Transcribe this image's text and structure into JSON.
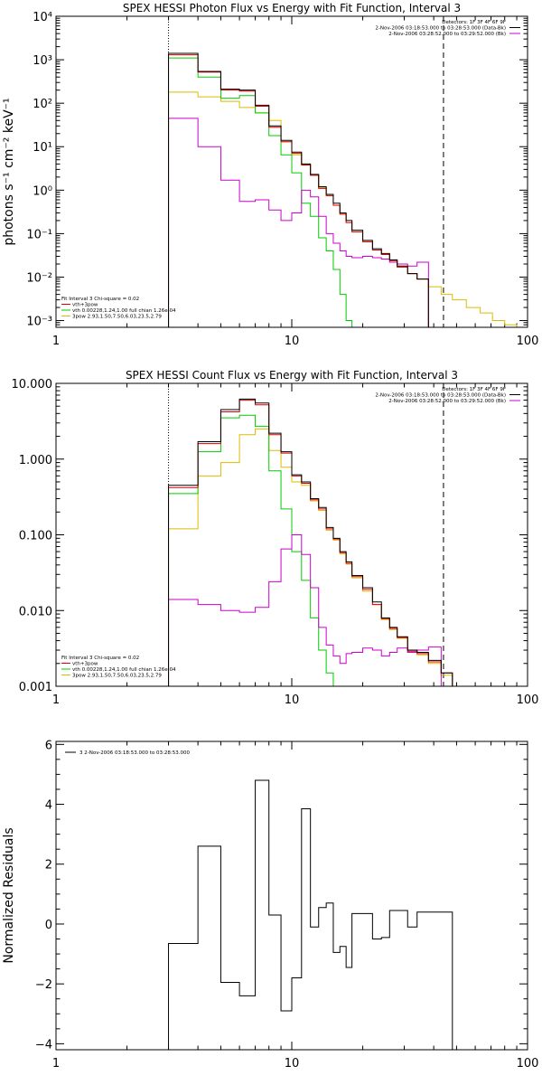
{
  "chart_data": [
    {
      "type": "line",
      "step": true,
      "title": "SPEX HESSI Photon Flux vs Energy with Fit Function, Interval 3",
      "ylabel": "photons s⁻¹ cm⁻² keV⁻¹",
      "xlabel": "",
      "xscale": "log",
      "yscale": "log",
      "xlim": [
        1,
        100
      ],
      "ylim": [
        0.0007,
        10000
      ],
      "x_ticks": [
        {
          "v": 1,
          "label": "1"
        },
        {
          "v": 10,
          "label": "10"
        },
        {
          "v": 100,
          "label": "100"
        }
      ],
      "y_ticks": [
        {
          "v": 0.001,
          "label": "10⁻³"
        },
        {
          "v": 0.01,
          "label": "10⁻²"
        },
        {
          "v": 0.1,
          "label": "10⁻¹"
        },
        {
          "v": 1,
          "label": "10⁰"
        },
        {
          "v": 10,
          "label": "10¹"
        },
        {
          "v": 100,
          "label": "10²"
        },
        {
          "v": 1000,
          "label": "10³"
        },
        {
          "v": 10000,
          "label": "10⁴"
        }
      ],
      "vlines": [
        {
          "x": 3,
          "style": "dotted",
          "color": "#000000"
        },
        {
          "x": 44,
          "style": "dashed",
          "color": "#000000"
        }
      ],
      "edges": [
        3,
        4,
        5,
        6,
        7,
        8,
        9,
        10,
        11,
        12,
        13,
        14,
        15,
        16,
        17,
        18,
        20,
        22,
        24,
        26,
        28,
        31,
        34,
        38,
        43,
        48,
        55,
        63,
        71,
        80,
        90,
        100
      ],
      "legend_top": [
        {
          "text": "Detectors: 1F 3F 4F 6F 9F",
          "color": "#000000"
        },
        {
          "text": "2-Nov-2006 03:18:53.000 to 03:28:53.000 (Data-Bk)",
          "color": "#000000"
        },
        {
          "text": "2-Nov-2006 03:28:52.000 to 03:29:52.000 (Bk)",
          "color": "#cc00cc"
        }
      ],
      "legend_bottom": [
        {
          "text": "Fit Interval 3   Chi-square = 0.02",
          "color": "#000000"
        },
        {
          "text": "vth+3pow",
          "color": "#dd0000"
        },
        {
          "text": "vth 0.00228,1.24,1.00  full chian 1.26e-04",
          "color": "#00cc00"
        },
        {
          "text": "3pow 2.93,1.50,7.50,6.03,23.5,2.79",
          "color": "#ddbb00"
        }
      ],
      "series": [
        {
          "color": "#000000",
          "values": [
            1400,
            540,
            210,
            200,
            90,
            30,
            14,
            7.5,
            4,
            2.3,
            1.2,
            0.8,
            0.5,
            0.3,
            0.2,
            0.12,
            0.07,
            0.045,
            0.035,
            0.025,
            0.018,
            0.012,
            0.009,
            null,
            null,
            null,
            null,
            null,
            null,
            null,
            null
          ]
        },
        {
          "color": "#dd0000",
          "values": [
            1300,
            520,
            200,
            190,
            85,
            28,
            13,
            7,
            3.8,
            2.2,
            1.1,
            0.75,
            0.45,
            0.28,
            0.18,
            0.11,
            0.065,
            0.042,
            0.033,
            0.024,
            0.017,
            0.012,
            0.009,
            null,
            null,
            null,
            null,
            null,
            null,
            null,
            null
          ]
        },
        {
          "color": "#00cc00",
          "values": [
            1100,
            400,
            130,
            150,
            60,
            18,
            6.5,
            2.5,
            0.5,
            0.25,
            0.08,
            0.04,
            0.015,
            0.004,
            0.001,
            null,
            null,
            null,
            null,
            null,
            null,
            null,
            null,
            null,
            null,
            null,
            null,
            null,
            null,
            null,
            null
          ]
        },
        {
          "color": "#ddbb00",
          "values": [
            180,
            140,
            110,
            80,
            60,
            40,
            13,
            6.5,
            4,
            2.2,
            1.15,
            0.75,
            0.45,
            0.28,
            0.18,
            0.11,
            0.065,
            0.042,
            0.033,
            0.024,
            0.017,
            0.012,
            0.009,
            0.006,
            0.004,
            0.003,
            0.002,
            0.0015,
            0.001,
            0.0008,
            0.0007
          ]
        },
        {
          "color": "#cc00cc",
          "values": [
            45,
            10,
            1.7,
            0.55,
            0.6,
            0.35,
            0.2,
            0.3,
            1,
            0.7,
            0.25,
            0.1,
            0.06,
            0.04,
            0.03,
            0.028,
            0.03,
            0.028,
            0.026,
            0.022,
            0.02,
            0.018,
            0.022,
            null,
            null,
            null,
            null,
            null,
            null,
            null,
            null
          ]
        }
      ]
    },
    {
      "type": "line",
      "step": true,
      "title": "SPEX HESSI Count Flux vs Energy with Fit Function, Interval 3",
      "ylabel": "",
      "xlabel": "",
      "xscale": "log",
      "yscale": "log",
      "xlim": [
        1,
        100
      ],
      "ylim": [
        0.001,
        10
      ],
      "x_ticks": [
        {
          "v": 1,
          "label": "1"
        },
        {
          "v": 10,
          "label": "10"
        },
        {
          "v": 100,
          "label": "100"
        }
      ],
      "y_ticks": [
        {
          "v": 0.001,
          "label": "0.001"
        },
        {
          "v": 0.01,
          "label": "0.010"
        },
        {
          "v": 0.1,
          "label": "0.100"
        },
        {
          "v": 1,
          "label": "1.000"
        },
        {
          "v": 10,
          "label": "10.000"
        }
      ],
      "vlines": [
        {
          "x": 3,
          "style": "dotted",
          "color": "#000000"
        },
        {
          "x": 44,
          "style": "dashed",
          "color": "#000000"
        }
      ],
      "edges": [
        3,
        4,
        5,
        6,
        7,
        8,
        9,
        10,
        11,
        12,
        13,
        14,
        15,
        16,
        17,
        18,
        20,
        22,
        24,
        26,
        28,
        31,
        34,
        38,
        43,
        48
      ],
      "legend_top": [
        {
          "text": "Detectors: 1F 3F 4F 6F 9F",
          "color": "#000000"
        },
        {
          "text": "2-Nov-2006 03:18:53.000 to 03:28:53.000 (Data-Bk)",
          "color": "#000000"
        },
        {
          "text": "2-Nov-2006 03:28:52.000 to 03:29:52.000 (Bk)",
          "color": "#cc00cc"
        }
      ],
      "legend_bottom": [
        {
          "text": "Fit Interval 3   Chi-square = 0.02",
          "color": "#000000"
        },
        {
          "text": "vth+3pow",
          "color": "#dd0000"
        },
        {
          "text": "vth 0.00228,1.24,1.00  full chian 1.26e-04",
          "color": "#00cc00"
        },
        {
          "text": "3pow 2.93,1.50,7.50,6.03,23.5,2.79",
          "color": "#ddbb00"
        }
      ],
      "series": [
        {
          "color": "#000000",
          "values": [
            0.45,
            1.7,
            4.5,
            6.2,
            5.5,
            2.2,
            1.25,
            0.62,
            0.5,
            0.3,
            0.23,
            0.125,
            0.09,
            0.06,
            0.044,
            0.029,
            0.02,
            0.013,
            0.008,
            0.006,
            0.0045,
            0.003,
            0.0028,
            0.0022,
            0.0015
          ]
        },
        {
          "color": "#dd0000",
          "values": [
            0.42,
            1.6,
            4.2,
            6,
            5.2,
            2.1,
            1.2,
            0.6,
            0.48,
            0.29,
            0.22,
            0.12,
            0.088,
            0.058,
            0.042,
            0.028,
            0.019,
            0.012,
            0.0078,
            0.0058,
            0.0044,
            0.0029,
            0.0027,
            0.0021,
            0.0015
          ]
        },
        {
          "color": "#00cc00",
          "values": [
            0.35,
            1.25,
            3.5,
            3.8,
            2.7,
            0.7,
            0.22,
            0.06,
            0.025,
            0.008,
            0.003,
            0.0015,
            0.001,
            null,
            null,
            null,
            null,
            null,
            null,
            null,
            null,
            null,
            null,
            null,
            null
          ]
        },
        {
          "color": "#ddbb00",
          "values": [
            0.12,
            0.6,
            0.9,
            2.1,
            2.5,
            1.3,
            0.78,
            0.5,
            0.45,
            0.28,
            0.21,
            0.115,
            0.085,
            0.056,
            0.041,
            0.027,
            0.018,
            0.012,
            0.0076,
            0.0056,
            0.0043,
            0.0028,
            0.0026,
            0.002,
            0.0014
          ]
        },
        {
          "color": "#cc00cc",
          "values": [
            0.014,
            0.012,
            0.01,
            0.0095,
            0.011,
            0.024,
            0.065,
            0.1,
            0.055,
            0.02,
            0.006,
            0.0035,
            0.0025,
            0.002,
            0.0027,
            0.0028,
            0.0032,
            0.003,
            0.0025,
            0.0028,
            0.0032,
            0.0028,
            0.003,
            0.0033,
            null
          ]
        }
      ]
    },
    {
      "type": "line",
      "step": true,
      "title": "",
      "ylabel": "Normalized Residuals",
      "xlabel": "",
      "xscale": "log",
      "yscale": "linear",
      "xlim": [
        1,
        100
      ],
      "ylim": [
        -4.2,
        6.1
      ],
      "x_ticks": [
        {
          "v": 1,
          "label": "1"
        },
        {
          "v": 10,
          "label": "10"
        },
        {
          "v": 100,
          "label": "100"
        }
      ],
      "y_ticks": [
        {
          "v": -4,
          "label": "−4"
        },
        {
          "v": -2,
          "label": "−2"
        },
        {
          "v": 0,
          "label": "0"
        },
        {
          "v": 2,
          "label": "2"
        },
        {
          "v": 4,
          "label": "4"
        },
        {
          "v": 6,
          "label": "6"
        }
      ],
      "vlines": [],
      "edges": [
        3,
        4,
        5,
        6,
        7,
        8,
        9,
        10,
        11,
        12,
        13,
        14,
        15,
        16,
        17,
        18,
        20,
        22,
        24,
        26,
        28,
        31,
        34,
        38,
        43,
        48
      ],
      "legend_top": [],
      "legend_bottom": [],
      "legend_residual": {
        "text": "3  2-Nov-2006 03:18:53.000 to 03:28:53.000",
        "color": "#000000"
      },
      "series": [
        {
          "color": "#000000",
          "values": [
            -0.65,
            2.6,
            -1.95,
            -2.4,
            4.8,
            0.3,
            -2.9,
            -1.8,
            3.85,
            -0.1,
            0.55,
            0.7,
            -0.95,
            -0.75,
            -1.45,
            0.35,
            0.35,
            -0.5,
            -0.45,
            0.45,
            0.45,
            -0.1,
            0.4,
            0.4,
            0.4
          ],
          "drop_to_bottom": true
        }
      ]
    }
  ]
}
